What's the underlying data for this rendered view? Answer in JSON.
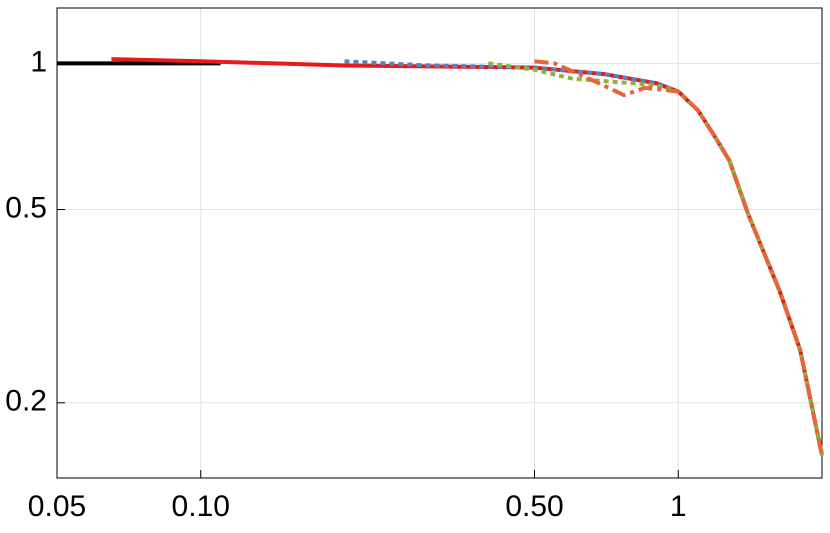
{
  "chart_data": {
    "type": "line",
    "xscale": "log",
    "yscale": "log",
    "grid": true,
    "xlim": [
      0.05,
      2
    ],
    "ylim": [
      0.14,
      1.3
    ],
    "xticks": [
      0.05,
      {
        "value": 0.1,
        "label": "0.10"
      },
      {
        "value": 0.5,
        "label": "0.50"
      },
      1
    ],
    "yticks": [
      0.2,
      0.5,
      1
    ],
    "series": [
      {
        "color": "#000000",
        "line_style": "solid",
        "x": [
          0.05,
          0.08,
          0.11
        ],
        "values": [
          1.0,
          1.0,
          1.0
        ]
      },
      {
        "color": "#e81a1a",
        "line_style": "solid",
        "x": [
          0.065,
          0.1,
          0.2,
          0.5,
          0.7,
          0.9,
          1.0,
          1.1,
          1.2,
          1.28,
          1.4,
          1.63,
          1.8,
          2.0
        ],
        "values": [
          1.02,
          1.01,
          0.99,
          0.98,
          0.95,
          0.91,
          0.875,
          0.8,
          0.7,
          0.63,
          0.49,
          0.34,
          0.257,
          0.156
        ]
      },
      {
        "color": "#5b7fc7",
        "line_style": "dotted",
        "x": [
          0.2,
          0.3,
          0.5,
          0.7,
          0.9,
          1.0,
          1.1,
          1.2,
          1.28,
          1.4,
          1.63,
          1.8,
          2.0
        ],
        "values": [
          1.01,
          0.99,
          0.98,
          0.95,
          0.91,
          0.875,
          0.8,
          0.7,
          0.63,
          0.49,
          0.34,
          0.257,
          0.156
        ]
      },
      {
        "color": "#8db33a",
        "line_style": "dotted",
        "x": [
          0.4,
          0.5,
          0.6,
          0.8,
          0.9,
          1.0,
          1.1,
          1.2,
          1.28,
          1.4,
          1.63,
          1.8,
          2.0
        ],
        "values": [
          1.0,
          0.97,
          0.93,
          0.91,
          0.9,
          0.875,
          0.8,
          0.7,
          0.63,
          0.49,
          0.34,
          0.257,
          0.156
        ]
      },
      {
        "color": "#e8643a",
        "line_style": "dashdot",
        "x": [
          0.5,
          0.55,
          0.65,
          0.77,
          0.85,
          0.95,
          1.0,
          1.1,
          1.2,
          1.28,
          1.4,
          1.63,
          1.8,
          2.0
        ],
        "values": [
          1.01,
          1.0,
          0.93,
          0.86,
          0.89,
          0.88,
          0.875,
          0.8,
          0.7,
          0.63,
          0.49,
          0.34,
          0.257,
          0.156
        ]
      }
    ]
  }
}
